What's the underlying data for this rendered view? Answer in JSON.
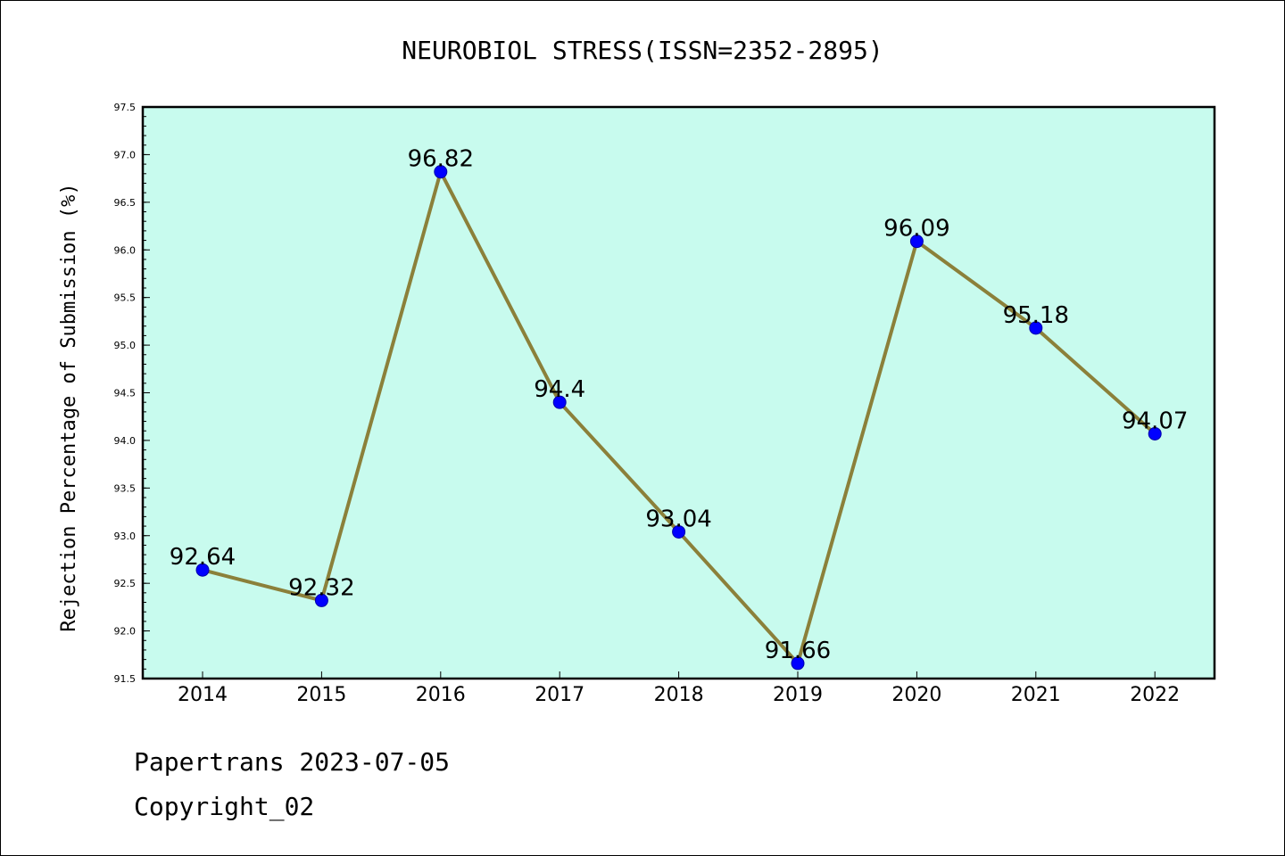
{
  "chart_data": {
    "type": "line",
    "title": "NEUROBIOL STRESS(ISSN=2352-2895)",
    "xlabel": "",
    "ylabel": "Rejection Percentage of Submission (%)",
    "categories": [
      "2014",
      "2015",
      "2016",
      "2017",
      "2018",
      "2019",
      "2020",
      "2021",
      "2022"
    ],
    "values": [
      92.64,
      92.32,
      96.82,
      94.4,
      93.04,
      91.66,
      96.09,
      95.18,
      94.07
    ],
    "data_labels": [
      "92.64",
      "92.32",
      "96.82",
      "94.4",
      "93.04",
      "91.66",
      "96.09",
      "95.18",
      "94.07"
    ],
    "ylim": [
      91.5,
      97.5
    ],
    "yticks": [
      "91.5",
      "92.0",
      "92.5",
      "93.0",
      "93.5",
      "94.0",
      "94.5",
      "95.0",
      "95.5",
      "96.0",
      "96.5",
      "97.0",
      "97.5"
    ],
    "grid": false,
    "legend": "none",
    "colors": {
      "plot_background": "#c8fbee",
      "line": "#8b803a",
      "marker": "#0000ff"
    }
  },
  "footer": {
    "line1": "Papertrans 2023-07-05",
    "line2": "Copyright_02"
  }
}
